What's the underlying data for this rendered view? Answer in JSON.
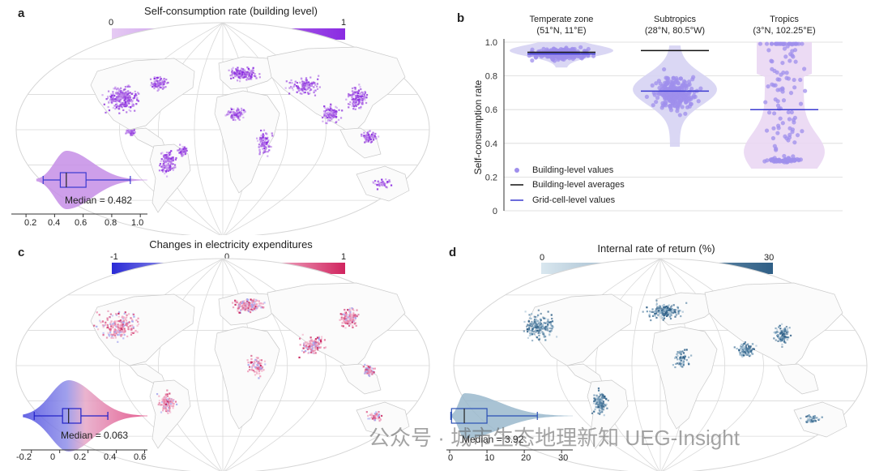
{
  "panels": {
    "a": {
      "label": "a",
      "title": "Self-consumption rate (building level)",
      "colorbar": {
        "min": "0",
        "max": "1",
        "color_low": "#e4c6f2",
        "color_high": "#8a2be2"
      },
      "map_color": "#a354e0",
      "median_label": "Median = 0.482",
      "axis_ticks": [
        "0.2",
        "0.4",
        "0.6",
        "0.8",
        "1.0"
      ]
    },
    "b": {
      "label": "b",
      "ylabel": "Self-consumption rate",
      "legend": {
        "dots": "Building-level values",
        "black": "Building-level averages",
        "blue": "Grid-cell-level values"
      }
    },
    "c": {
      "label": "c",
      "title": "Changes in electricity expenditures",
      "colorbar": {
        "min": "-1",
        "mid": "0",
        "max": "1",
        "color_low": "#2a2ad6",
        "color_mid": "#f2e6ef",
        "color_high": "#d0245e"
      },
      "map_color": "#e58aa8",
      "median_label": "Median = 0.063",
      "axis_ticks": [
        "-0.2",
        "0",
        "0.2",
        "0.4",
        "0.6"
      ]
    },
    "d": {
      "label": "d",
      "title": "Internal rate of return (%)",
      "colorbar": {
        "min": "0",
        "max": "30",
        "color_low": "#d8e6ee",
        "color_high": "#2f5f86"
      },
      "map_color": "#3d6f95",
      "median_label": "Median = 3.92",
      "axis_ticks": [
        "0",
        "10",
        "20",
        "30"
      ]
    }
  },
  "watermark": "公众号 · 城市生态地理新知 UEG-Insight",
  "chart_data": [
    {
      "type": "violin-box",
      "panel": "a",
      "title": "Self-consumption rate (building level)",
      "median": 0.482,
      "box": {
        "whisker_low": 0.32,
        "q1": 0.44,
        "q3": 0.62,
        "whisker_high": 0.93
      },
      "xlim": [
        0.12,
        1.05
      ]
    },
    {
      "type": "scatter-violin",
      "panel": "b",
      "ylabel": "Self-consumption rate",
      "ylim": [
        0,
        1
      ],
      "yticks": [
        "0",
        "0.2",
        "0.4",
        "0.6",
        "0.8",
        "1.0"
      ],
      "groups": [
        {
          "name": "Temperate zone",
          "coords": "(51°N, 11°E)",
          "building_average": 0.94,
          "grid_cell_value": 0.93,
          "range": [
            0.85,
            1.0
          ]
        },
        {
          "name": "Subtropics",
          "coords": "(28°N, 80.5°W)",
          "building_average": 0.95,
          "grid_cell_value": 0.71,
          "range": [
            0.38,
            0.98
          ]
        },
        {
          "name": "Tropics",
          "coords": "(3°N, 102.25°E)",
          "building_average": 0.6,
          "grid_cell_value": 0.6,
          "range": [
            0.25,
            1.0
          ]
        }
      ]
    },
    {
      "type": "violin-box",
      "panel": "c",
      "title": "Changes in electricity expenditures",
      "median": 0.063,
      "box": {
        "whisker_low": -0.18,
        "q1": 0.02,
        "q3": 0.15,
        "whisker_high": 0.34
      },
      "xlim": [
        -0.25,
        0.62
      ]
    },
    {
      "type": "violin-box",
      "panel": "d",
      "title": "Internal rate of return (%)",
      "median": 3.92,
      "box": {
        "whisker_low": 0.3,
        "q1": 0.5,
        "q3": 10.0,
        "whisker_high": 23.5
      },
      "xlim": [
        0,
        33
      ]
    }
  ]
}
